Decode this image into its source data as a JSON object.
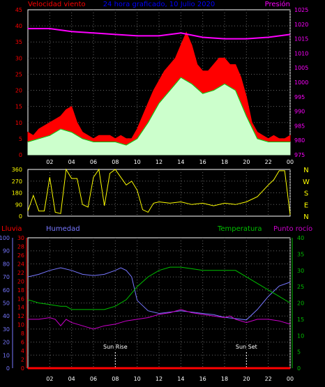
{
  "chart_data": [
    {
      "type": "line",
      "panel": "wind",
      "title": "24 hora graficado, 10 Julio 2020",
      "left_label": "Velocidad viento",
      "right_label": "Presión",
      "ylim": [
        0,
        45
      ],
      "yticks": [
        0,
        5,
        10,
        15,
        20,
        25,
        30,
        35,
        40,
        45
      ],
      "y2lim": [
        975,
        1025
      ],
      "y2ticks": [
        975,
        980,
        985,
        990,
        995,
        1000,
        1005,
        1010,
        1015,
        1020,
        1025
      ],
      "x_hours": [
        0,
        24
      ],
      "xtick_labels": [
        "02",
        "04",
        "06",
        "08",
        "10",
        "12",
        "14",
        "16",
        "18",
        "20",
        "22",
        "00"
      ],
      "grid": true,
      "colors": {
        "gust": "#ff0000",
        "speed": "#00c000",
        "avg": "#ccffcc",
        "pressure": "#ff00ff",
        "axis": "#ff0000",
        "axis2": "#ff00ff",
        "title": "#0000ff"
      },
      "series": [
        {
          "name": "gust",
          "x": [
            0,
            0.5,
            1,
            1.5,
            2,
            2.5,
            3,
            3.5,
            4,
            4.5,
            5,
            5.5,
            6,
            6.5,
            7,
            7.5,
            8,
            8.5,
            9,
            9.5,
            10,
            10.5,
            11,
            11.5,
            12,
            12.5,
            13,
            13.5,
            14,
            14.5,
            15,
            15.5,
            16,
            16.5,
            17,
            17.5,
            18,
            18.5,
            19,
            19.5,
            20,
            20.5,
            21,
            21.5,
            22,
            22.5,
            23,
            23.5,
            24
          ],
          "values": [
            7,
            6,
            8,
            9,
            10,
            11,
            12,
            14,
            15,
            10,
            7,
            6,
            5,
            6,
            6,
            6,
            5,
            6,
            5,
            5,
            8,
            12,
            16,
            20,
            23,
            26,
            28,
            30,
            34,
            38,
            34,
            28,
            26,
            26,
            28,
            30,
            30,
            28,
            28,
            24,
            18,
            10,
            7,
            6,
            5,
            6,
            5,
            5,
            6
          ]
        },
        {
          "name": "speed",
          "x": [
            0,
            1,
            2,
            3,
            4,
            5,
            6,
            7,
            8,
            9,
            10,
            11,
            12,
            13,
            14,
            15,
            16,
            17,
            18,
            19,
            20,
            21,
            22,
            23,
            24
          ],
          "values": [
            4,
            5,
            6,
            8,
            7,
            5,
            4,
            4,
            4,
            3,
            5,
            10,
            16,
            20,
            24,
            22,
            19,
            20,
            22,
            20,
            12,
            5,
            4,
            4,
            4
          ]
        },
        {
          "name": "pressure",
          "x": [
            0,
            2,
            4,
            6,
            8,
            10,
            12,
            14,
            16,
            18,
            20,
            22,
            24
          ],
          "values": [
            1018.5,
            1018.5,
            1017.5,
            1017,
            1016.5,
            1016,
            1016,
            1017,
            1015.5,
            1015,
            1015,
            1015.5,
            1016.5
          ]
        }
      ]
    },
    {
      "type": "line",
      "panel": "direction",
      "yticks": [
        0,
        90,
        180,
        270,
        360
      ],
      "ylim": [
        0,
        360
      ],
      "compass": [
        "N",
        "W",
        "S",
        "E",
        "N"
      ],
      "colors": {
        "dir": "#ffff00",
        "axis": "#ffff00"
      },
      "series": [
        {
          "name": "direction",
          "x": [
            0,
            0.5,
            1,
            1.5,
            2,
            2.5,
            3,
            3.5,
            4,
            4.5,
            5,
            5.5,
            6,
            6.5,
            7,
            7.5,
            8,
            8.5,
            9,
            9.5,
            10,
            10.5,
            11,
            11.5,
            12,
            13,
            14,
            15,
            16,
            17,
            18,
            19,
            20,
            21,
            22,
            22.5,
            23,
            23.5,
            24
          ],
          "values": [
            40,
            160,
            40,
            40,
            300,
            30,
            20,
            360,
            290,
            290,
            90,
            70,
            300,
            360,
            80,
            330,
            360,
            300,
            240,
            270,
            200,
            50,
            30,
            100,
            110,
            100,
            110,
            90,
            100,
            80,
            100,
            90,
            110,
            150,
            240,
            280,
            350,
            350,
            10
          ]
        }
      ]
    },
    {
      "type": "line",
      "panel": "climate",
      "labels": {
        "rain": "Lluvia",
        "humidity": "Humedad",
        "temperature": "Temperatura",
        "dew": "Punto rocío",
        "sunrise": "Sun Rise",
        "sunset": "Sun Set"
      },
      "humidity_ylim": [
        0,
        100
      ],
      "humidity_ticks": [
        0,
        10,
        20,
        30,
        40,
        50,
        60,
        70,
        80,
        90,
        100
      ],
      "rain_ylim": [
        0,
        30
      ],
      "rain_ticks": [
        0,
        2,
        4,
        6,
        8,
        10,
        12,
        14,
        16,
        18,
        20,
        22,
        24,
        26,
        28,
        30
      ],
      "temp_ylim": [
        0,
        40
      ],
      "temp_ticks": [
        0,
        5,
        10,
        15,
        20,
        25,
        30,
        35,
        40
      ],
      "sunrise_hour": 8,
      "sunset_hour": 20,
      "colors": {
        "rain": "#ff0000",
        "humidity": "#7777ff",
        "temperature": "#00c000",
        "dew": "#cc00cc",
        "axis_h": "#7777ff",
        "axis_r": "#ff0000",
        "axis_t": "#00c000",
        "sun": "#ffffff"
      },
      "series": [
        {
          "name": "humidity",
          "axis": "humidity",
          "x": [
            0,
            1,
            2,
            3,
            4,
            5,
            6,
            7,
            8,
            8.5,
            9,
            9.5,
            10,
            11,
            12,
            13,
            14,
            15,
            16,
            17,
            18,
            19,
            20,
            21,
            22,
            23,
            24
          ],
          "values": [
            70,
            72,
            75,
            77,
            75,
            72,
            71,
            72,
            75,
            77,
            75,
            70,
            52,
            44,
            42,
            43,
            44,
            43,
            42,
            41,
            39,
            38,
            37,
            45,
            55,
            63,
            66
          ]
        },
        {
          "name": "temperature",
          "axis": "temperature",
          "x": [
            0,
            1,
            2,
            3,
            3.5,
            4,
            5,
            6,
            7,
            8,
            9,
            10,
            11,
            12,
            13,
            14,
            15,
            16,
            17,
            18,
            19,
            20,
            21,
            22,
            23,
            24
          ],
          "values": [
            21,
            20,
            19.5,
            19,
            19,
            18,
            18,
            18,
            18,
            19,
            21,
            25,
            28,
            30,
            31,
            31,
            30.5,
            30,
            30,
            30,
            30,
            28,
            26,
            24,
            22,
            20
          ]
        },
        {
          "name": "dew",
          "axis": "temperature",
          "x": [
            0,
            1,
            2,
            2.5,
            3,
            3.5,
            4,
            5,
            6,
            7,
            8,
            9,
            10,
            11,
            12,
            13,
            14,
            15,
            16,
            17,
            18,
            18.5,
            19,
            20,
            21,
            22,
            23,
            24
          ],
          "values": [
            15,
            15,
            15.5,
            15,
            13,
            15,
            14,
            13,
            12,
            13,
            13.5,
            14.5,
            15,
            15.5,
            16.5,
            17,
            18,
            17,
            16.5,
            16,
            15.5,
            16,
            15,
            14,
            15,
            15,
            14.5,
            13.5
          ]
        },
        {
          "name": "rain",
          "axis": "rain",
          "x": [
            0,
            24
          ],
          "values": [
            0,
            0
          ]
        }
      ]
    }
  ]
}
